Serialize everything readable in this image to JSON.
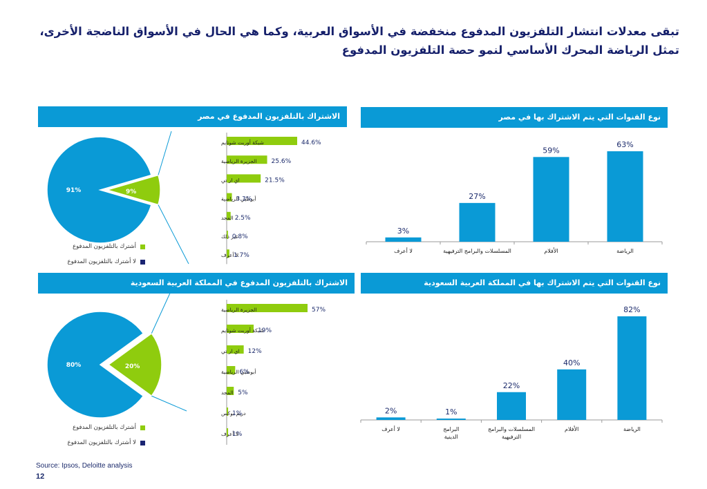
{
  "title": "تبقى معدلات انتشار التلفزيون المدفوع منخفضة في الأسواق العربية، وكما هي الحال في الأسواق الناضجة الأخرى، تمثل الرياضة المحرك الأساسي لنمو حصة التلفزيون المدفوع",
  "colors": {
    "blue": "#0a9ad6",
    "green": "#8fcc0e",
    "navy": "#1a2472",
    "header": "#0a9ad6"
  },
  "source": "Source: Ipsos, Deloitte analysis",
  "page_number": "12",
  "legend": {
    "subscribe": "أشترك بالتلفزيون المدفوع",
    "not_subscribe": "لا أشترك بالتلفزيون المدفوع"
  },
  "chart_data": [
    {
      "id": "egypt-pie",
      "type": "pie",
      "title": "الاشتراك بالتلفزيون المدفوع في مصر",
      "slices": [
        {
          "label": "لا أشترك بالتلفزيون المدفوع",
          "value": 91,
          "display": "91%"
        },
        {
          "label": "أشترك بالتلفزيون المدفوع",
          "value": 9,
          "display": "9%"
        }
      ]
    },
    {
      "id": "egypt-channels",
      "type": "bar",
      "orientation": "horizontal",
      "categories": [
        "شبكة أوربت شوتايم",
        "الجزيرة الرياضية",
        "اي ار تي",
        "أبوظبي الرياضية",
        "المجد",
        "غير ذلك",
        "لا أعرف"
      ],
      "values": [
        44.6,
        25.6,
        21.5,
        3.3,
        2.5,
        0.8,
        1.7
      ],
      "labels": [
        "44.6%",
        "25.6%",
        "21.5%",
        "3.3%",
        "2.5%",
        "0.8%",
        "1.7%"
      ]
    },
    {
      "id": "egypt-types",
      "type": "bar",
      "title": "نوع القنوات التي يتم الاشتراك بها في مصر",
      "categories": [
        "الرياضة",
        "الأفلام",
        "المسلسلات والبرامج الترفيهية",
        "لا أعرف"
      ],
      "values": [
        63,
        59,
        27,
        3
      ],
      "labels": [
        "63%",
        "59%",
        "27%",
        "3%"
      ]
    },
    {
      "id": "ksa-pie",
      "type": "pie",
      "title": "الاشتراك بالتلفزيون المدفوع في المملكة العربية السعودية",
      "slices": [
        {
          "label": "لا أشترك بالتلفزيون المدفوع",
          "value": 80,
          "display": "80%"
        },
        {
          "label": "أشترك بالتلفزيون المدفوع",
          "value": 20,
          "display": "20%"
        }
      ]
    },
    {
      "id": "ksa-channels",
      "type": "bar",
      "orientation": "horizontal",
      "categories": [
        "الجزيرة الرياضية",
        "شبكة أوربت شوتايم",
        "اي ار تي",
        "أبوظبي الرياضية",
        "المجد",
        "دريم بوكس",
        "لا أعرف"
      ],
      "values": [
        57,
        19,
        12,
        6,
        5,
        1,
        1
      ],
      "labels": [
        "57%",
        "19%",
        "12%",
        "6%",
        "5%",
        "1%",
        "1%"
      ]
    },
    {
      "id": "ksa-types",
      "type": "bar",
      "title": "نوع القنوات التي يتم الاشتراك بها في المملكة العربية السعودية",
      "categories": [
        "الرياضة",
        "الأفلام",
        "المسلسلات والبرامج الترفيهية",
        "البرامج الدينية",
        "لا أعرف"
      ],
      "values": [
        82,
        40,
        22,
        1,
        2
      ],
      "labels": [
        "82%",
        "40%",
        "22%",
        "1%",
        "2%"
      ]
    }
  ]
}
